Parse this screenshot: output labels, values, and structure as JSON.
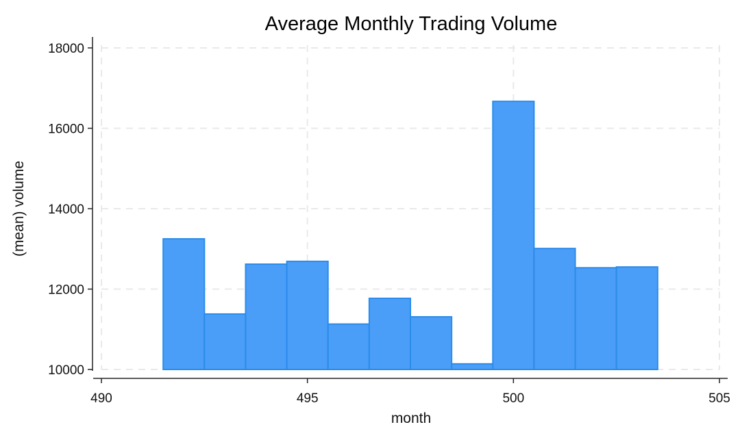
{
  "chart_data": {
    "type": "bar",
    "title": "Average Monthly Trading Volume",
    "xlabel": "month",
    "ylabel": "(mean) volume",
    "xlim": [
      490,
      505
    ],
    "ylim": [
      10000,
      18000
    ],
    "xticks": [
      490,
      495,
      500,
      505
    ],
    "yticks": [
      10000,
      12000,
      14000,
      16000,
      18000
    ],
    "grid": true,
    "bar_color": "#4a9ef8",
    "bar_border_color": "#2b8be9",
    "bar_width": 1,
    "x": [
      492,
      493,
      494,
      495,
      496,
      497,
      498,
      499,
      500,
      501,
      502,
      503
    ],
    "values": [
      13250,
      11380,
      12620,
      12690,
      11130,
      11770,
      11310,
      10140,
      16670,
      13010,
      12530,
      12550
    ]
  }
}
